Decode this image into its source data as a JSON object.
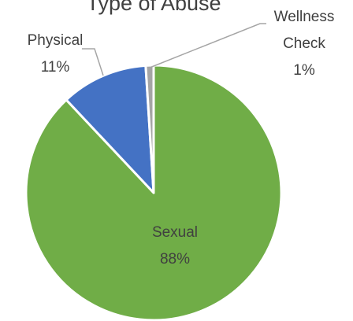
{
  "chart_data": {
    "type": "pie",
    "title": "Type of Abuse",
    "categories": [
      "Sexual",
      "Physical",
      "Wellness Check"
    ],
    "values": [
      88,
      11,
      1
    ],
    "value_labels": [
      "88%",
      "11%",
      "1%"
    ],
    "colors": [
      "#70ad47",
      "#4472c4",
      "#a5a5a5"
    ]
  }
}
